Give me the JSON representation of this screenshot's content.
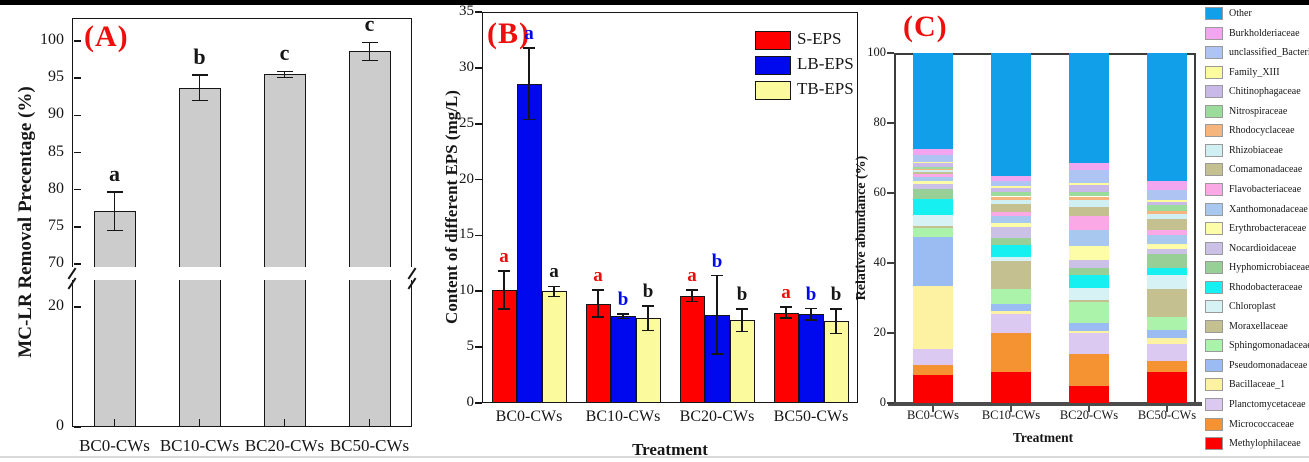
{
  "page": {
    "background": "#ffffff",
    "top_bar_color": "#000000",
    "bottom_rule_color": "#d9d9d9",
    "axis_color": "#161616",
    "treatment_categories": [
      "BC0-CWs",
      "BC10-CWs",
      "BC20-CWs",
      "BC50-CWs"
    ]
  },
  "chart_data": [
    {
      "id": "A",
      "type": "bar",
      "panel_label": "(A)",
      "panel_label_color": "#ee0f0c",
      "ylabel": "MC-LR Removal Precentage (%)",
      "xlabel": "",
      "categories": [
        "BC0-CWs",
        "BC10-CWs",
        "BC20-CWs",
        "BC50-CWs"
      ],
      "values": [
        77.1,
        93.7,
        95.5,
        98.6
      ],
      "errors": [
        2.6,
        1.7,
        0.4,
        1.2
      ],
      "sig_letters": [
        "a",
        "b",
        "c",
        "c"
      ],
      "sig_letter_color": "#161616",
      "bar_color": "#cccccc",
      "bar_border": "#161616",
      "axis_break": {
        "between": [
          20,
          70
        ],
        "lower_ticks": [
          0,
          20
        ],
        "upper_ticks": [
          70,
          75,
          80,
          85,
          90,
          95,
          100
        ]
      },
      "grid": false
    },
    {
      "id": "B",
      "type": "grouped-bar",
      "panel_label": "(B)",
      "panel_label_color": "#ee0f0c",
      "ylabel": "Content of different EPS (mg/L)",
      "xlabel": "Treatment",
      "categories": [
        "BC0-CWs",
        "BC10-CWs",
        "BC20-CWs",
        "BC50-CWs"
      ],
      "yticks": [
        0,
        5,
        10,
        15,
        20,
        25,
        30,
        35
      ],
      "ylim": [
        0,
        35
      ],
      "legend_position": "top-right",
      "series": [
        {
          "name": "S-EPS",
          "color": "#fe0000",
          "letter_color": "#e8100c",
          "values": [
            10.1,
            8.9,
            9.6,
            8.1
          ],
          "errors": [
            1.7,
            1.2,
            0.5,
            0.5
          ],
          "letters": [
            "a",
            "a",
            "a",
            "a"
          ]
        },
        {
          "name": "LB-EPS",
          "color": "#0009ee",
          "letter_color": "#0009ee",
          "values": [
            28.6,
            7.75,
            7.9,
            7.95
          ],
          "errors": [
            3.2,
            0.2,
            3.5,
            0.5
          ],
          "letters": [
            "a",
            "b",
            "b",
            "b"
          ]
        },
        {
          "name": "TB-EPS",
          "color": "#fbfa9d",
          "letter_color": "#161616",
          "values": [
            10.0,
            7.6,
            7.4,
            7.3
          ],
          "errors": [
            0.45,
            1.1,
            1.0,
            1.1
          ],
          "letters": [
            "a",
            "b",
            "b",
            "b"
          ]
        }
      ],
      "grid": false
    },
    {
      "id": "C",
      "type": "stacked-bar",
      "panel_label": "(C)",
      "panel_label_color": "#ee0f0c",
      "ylabel": "Relative abundance (%)",
      "xlabel": "Treatment",
      "categories": [
        "BC0-CWs",
        "BC10-CWs",
        "BC20-CWs",
        "BC50-CWs"
      ],
      "yticks": [
        0,
        20,
        40,
        60,
        80,
        100
      ],
      "ylim": [
        0,
        100
      ],
      "legend_position": "right",
      "taxa": [
        {
          "name": "Other",
          "color": "#109fe8",
          "values": [
            27.5,
            35.0,
            31.5,
            36.5
          ]
        },
        {
          "name": "Burkholderiaceae",
          "color": "#f2a6f0",
          "values": [
            1.5,
            1.5,
            2.0,
            2.5
          ]
        },
        {
          "name": "unclassified_Bacteria",
          "color": "#aec4f2",
          "values": [
            2.0,
            1.5,
            3.5,
            3.0
          ]
        },
        {
          "name": "Family_XIII",
          "color": "#fcfc9e",
          "values": [
            0.5,
            0.5,
            0.8,
            0.5
          ]
        },
        {
          "name": "Chitinophagaceae",
          "color": "#c9b9e8",
          "values": [
            1.0,
            1.3,
            2.0,
            1.0
          ]
        },
        {
          "name": "Nitrospiraceae",
          "color": "#9bdb9b",
          "values": [
            0.5,
            1.2,
            1.2,
            1.5
          ]
        },
        {
          "name": "Rhodocyclaceae",
          "color": "#f5b57d",
          "values": [
            0.5,
            1.0,
            1.0,
            1.0
          ]
        },
        {
          "name": "Rhizobiaceae",
          "color": "#cfeff2",
          "values": [
            0.5,
            1.0,
            2.0,
            1.5
          ]
        },
        {
          "name": "Comamonadaceae",
          "color": "#c4c08f",
          "values": [
            0.5,
            2.5,
            2.5,
            3.0
          ]
        },
        {
          "name": "Flavobacteriaceae",
          "color": "#fba8e6",
          "values": [
            1.0,
            1.0,
            4.0,
            1.5
          ]
        },
        {
          "name": "Xanthomonadaceae",
          "color": "#a8c8f0",
          "values": [
            1.0,
            2.0,
            4.5,
            2.5
          ]
        },
        {
          "name": "Erythrobacteraceae",
          "color": "#fdfda8",
          "values": [
            0.8,
            1.3,
            4.0,
            1.5
          ]
        },
        {
          "name": "Nocardioidaceae",
          "color": "#cbc0e6",
          "values": [
            1.5,
            3.0,
            2.5,
            1.5
          ]
        },
        {
          "name": "Hyphomicrobiaceae",
          "color": "#97cf97",
          "values": [
            3.0,
            2.0,
            2.0,
            4.0
          ]
        },
        {
          "name": "Rhodobacteraceae",
          "color": "#16f0f0",
          "values": [
            4.5,
            3.5,
            3.5,
            2.0
          ]
        },
        {
          "name": "Chloroplast",
          "color": "#d6f2f4",
          "values": [
            3.2,
            1.0,
            3.5,
            4.0
          ]
        },
        {
          "name": "Moraxellaceae",
          "color": "#c4c08f",
          "values": [
            0.5,
            8.0,
            0.5,
            8.0
          ]
        },
        {
          "name": "Sphingomonadaceae",
          "color": "#abf2ab",
          "values": [
            2.5,
            4.5,
            6.0,
            3.5
          ]
        },
        {
          "name": "Pseudomonadaceae",
          "color": "#9abcf2",
          "values": [
            14.0,
            2.0,
            2.3,
            2.5
          ]
        },
        {
          "name": "Bacillaceae_1",
          "color": "#fcf2a2",
          "values": [
            18.0,
            0.7,
            0.7,
            1.5
          ]
        },
        {
          "name": "Planctomycetaceae",
          "color": "#dbc9f2",
          "values": [
            4.5,
            5.5,
            6.0,
            5.0
          ]
        },
        {
          "name": "Micrococcaceae",
          "color": "#f59333",
          "values": [
            3.0,
            11.0,
            9.0,
            3.0
          ]
        },
        {
          "name": "Methylophilaceae",
          "color": "#fc0000",
          "values": [
            8.0,
            9.0,
            5.0,
            9.0
          ]
        }
      ],
      "grid": false
    }
  ]
}
